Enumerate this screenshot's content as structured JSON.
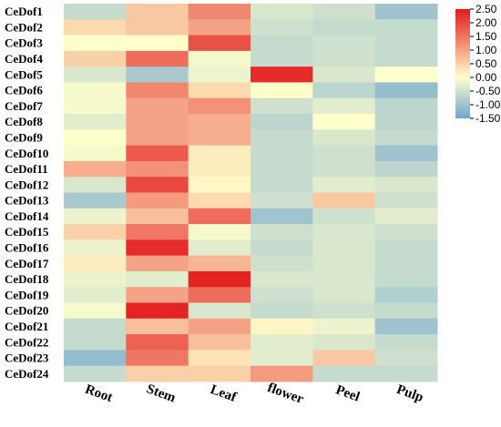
{
  "chart_data": {
    "type": "heatmap",
    "title": "",
    "xlabel": "",
    "ylabel": "",
    "columns": [
      "Root",
      "Stem",
      "Leaf",
      "flower",
      "Peel",
      "Pulp"
    ],
    "rows": [
      "CeDof1",
      "CeDof2",
      "CeDof3",
      "CeDof4",
      "CeDof5",
      "CeDof6",
      "CeDof7",
      "CeDof8",
      "CeDof9",
      "CeDof10",
      "CeDof11",
      "CeDof12",
      "CeDof13",
      "CeDof14",
      "CeDof15",
      "CeDof16",
      "CeDof17",
      "CeDof18",
      "CeDof19",
      "CeDof20",
      "CeDof21",
      "CeDof22",
      "CeDof23",
      "CeDof24"
    ],
    "values": [
      [
        -0.6,
        0.6,
        1.3,
        -0.4,
        -0.5,
        -1.0
      ],
      [
        0.4,
        0.6,
        1.0,
        -0.5,
        -0.6,
        -0.6
      ],
      [
        0.0,
        0.0,
        1.9,
        -0.6,
        -0.5,
        -0.6
      ],
      [
        0.5,
        1.6,
        -0.1,
        -0.6,
        -0.5,
        -0.6
      ],
      [
        -0.4,
        -0.9,
        -0.2,
        2.3,
        -0.4,
        0.0
      ],
      [
        -0.1,
        1.3,
        0.4,
        0.0,
        -0.7,
        -1.1
      ],
      [
        -0.1,
        1.0,
        1.2,
        -0.5,
        -0.3,
        -0.7
      ],
      [
        -0.3,
        1.0,
        0.9,
        -0.7,
        0.0,
        -0.7
      ],
      [
        0.0,
        1.0,
        0.9,
        -0.6,
        -0.4,
        -0.6
      ],
      [
        -0.1,
        1.8,
        0.2,
        -0.6,
        -0.5,
        -1.0
      ],
      [
        0.9,
        1.2,
        0.2,
        -0.6,
        -0.5,
        -0.7
      ],
      [
        -0.4,
        2.0,
        0.1,
        -0.6,
        -0.3,
        -0.4
      ],
      [
        -0.9,
        1.1,
        0.4,
        -0.5,
        0.6,
        -0.5
      ],
      [
        -0.2,
        0.7,
        1.6,
        -1.0,
        -0.5,
        -0.3
      ],
      [
        0.5,
        1.5,
        -0.1,
        -0.5,
        -0.4,
        -0.5
      ],
      [
        -0.2,
        2.3,
        -0.3,
        -0.6,
        -0.4,
        -0.6
      ],
      [
        0.2,
        1.0,
        0.8,
        -0.5,
        -0.4,
        -0.6
      ],
      [
        -0.2,
        -0.3,
        2.4,
        -0.4,
        -0.4,
        -0.6
      ],
      [
        -0.3,
        1.0,
        1.6,
        -0.5,
        -0.4,
        -0.8
      ],
      [
        -0.1,
        2.4,
        -0.4,
        -0.6,
        -0.5,
        -0.6
      ],
      [
        -0.6,
        0.7,
        1.0,
        0.1,
        -0.2,
        -1.0
      ],
      [
        -0.6,
        1.7,
        0.7,
        -0.3,
        -0.4,
        -0.6
      ],
      [
        -1.1,
        1.5,
        0.3,
        -0.3,
        0.6,
        -0.5
      ],
      [
        -0.6,
        0.5,
        0.5,
        1.1,
        -0.6,
        -0.6
      ]
    ],
    "colorbar": {
      "min": -1.5,
      "max": 2.5,
      "ticks": [
        "2.50",
        "2.00",
        "1.50",
        "1.00",
        "0.50",
        "0.00",
        "-0.50",
        "-1.00",
        "-1.50"
      ],
      "colors": [
        "#6fa5d1",
        "#ffffcc",
        "#e31a1c"
      ]
    },
    "grid": false,
    "legend_position": "right"
  }
}
